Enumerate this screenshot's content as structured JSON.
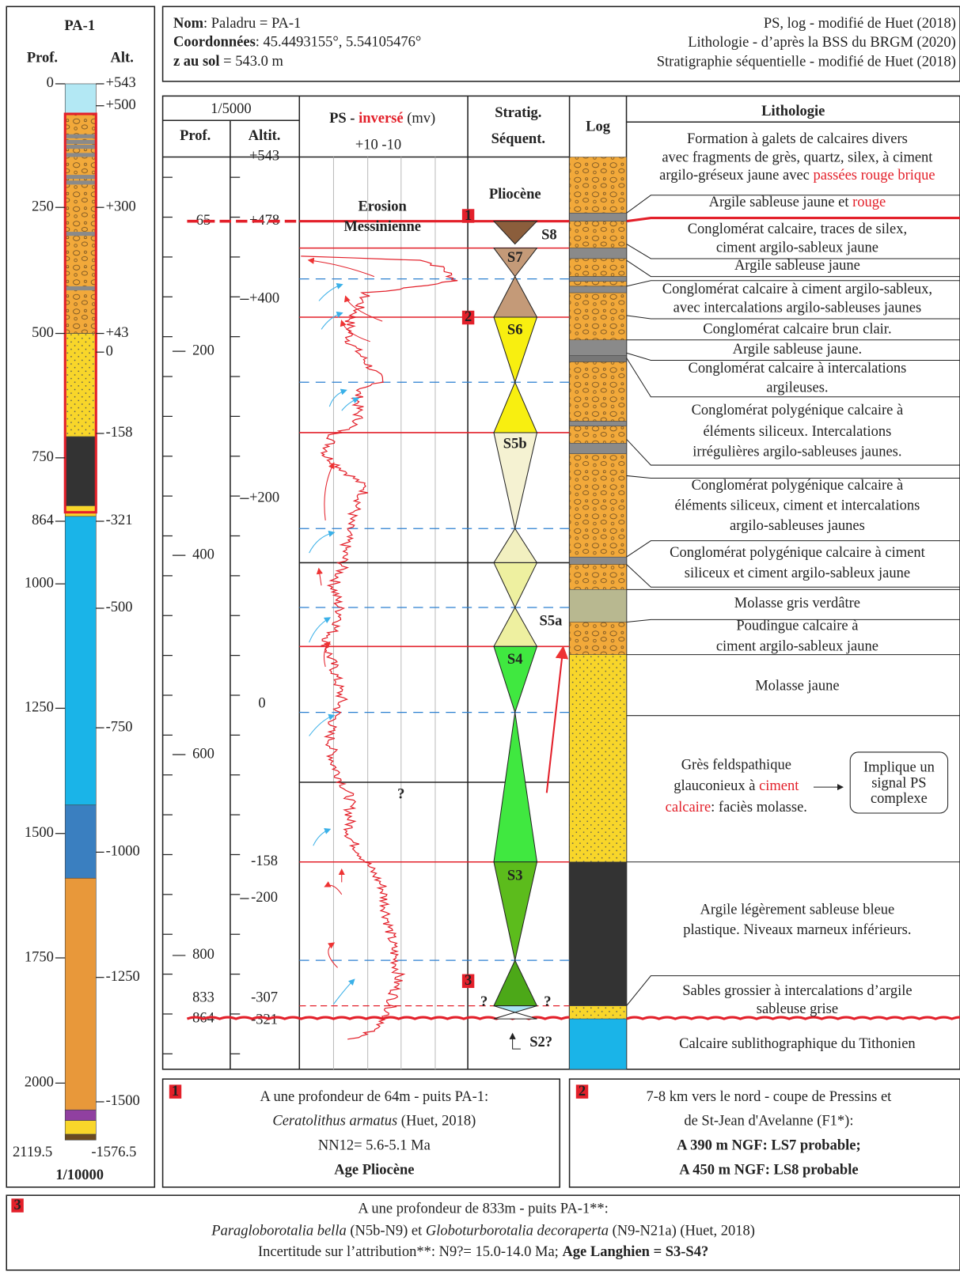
{
  "left_column": {
    "title": "PA-1",
    "depth_header": "Prof.",
    "alt_header": "Alt.",
    "depth_labels": [
      "0",
      "250",
      "500",
      "750",
      "864",
      "1000",
      "1250",
      "1500",
      "1750",
      "2000",
      "2119.5"
    ],
    "alt_labels": [
      "+543",
      "+500",
      "+300",
      "+43",
      "0",
      "-158",
      "-321",
      "-500",
      "-750",
      "-1000",
      "-1250",
      "-1500",
      "-1576.5"
    ],
    "scale": "1/10000"
  },
  "header": {
    "lines": [
      [
        {
          "text": "Nom",
          "style": "bold"
        },
        {
          "text": ": Paladru = PA-1"
        }
      ],
      [
        {
          "text": "Coordonnées",
          "style": "bold"
        },
        {
          "text": ": 45.4493155°, 5.54105476°"
        }
      ],
      [
        {
          "text": "z au sol",
          "style": "bold"
        },
        {
          "text": " = 543.0 m"
        }
      ]
    ],
    "credits": [
      "PS, log - modifié de Huet (2018)",
      "Lithologie - d’après la BSS du BRGM (2020)",
      "Stratigraphie séquentielle - modifié de Huet (2018)"
    ]
  },
  "columns": {
    "scale": "1/5000",
    "depth": "Prof.",
    "altitude": "Altit.",
    "ps": [
      {
        "text": "PS - ",
        "style": "bold"
      },
      {
        "text": "inversé",
        "style": "boldred"
      },
      {
        "text": " (mv)"
      }
    ],
    "ps_scale": "+10  -10",
    "strat": [
      "Stratig.",
      "Séquent."
    ],
    "log": "Log",
    "lithology": "Lithologie"
  },
  "depth_labels": [
    "65",
    "200",
    "400",
    "600",
    "800",
    "833",
    "864"
  ],
  "altitude_labels": [
    "+543",
    "+478",
    "+400",
    "+200",
    "0",
    "-158",
    "-200",
    "-307",
    "-321"
  ],
  "annotations": {
    "erosion": [
      "Erosion",
      "Messinienne"
    ],
    "pliocene": "Pliocène",
    "unknown": "?",
    "markers": [
      "1",
      "2",
      "3"
    ]
  },
  "sequences": [
    "S8",
    "S7",
    "S6",
    "S5b",
    "S5a",
    "S4",
    "S3",
    "S2?"
  ],
  "lithology": [
    [
      [
        {
          "text": "Formation à galets de calcaires divers"
        }
      ],
      [
        {
          "text": "avec fragments de grès, quartz, silex, à ciment"
        }
      ],
      [
        {
          "text": "argilo-gréseux jaune avec "
        },
        {
          "text": "passées rouge brique",
          "style": "red"
        }
      ]
    ],
    [
      [
        {
          "text": "Argile sableuse jaune et "
        },
        {
          "text": "rouge",
          "style": "red"
        }
      ]
    ],
    [
      [
        {
          "text": "Conglomérat calcaire, traces de silex,"
        }
      ],
      [
        {
          "text": "ciment argilo-sableux jaune"
        }
      ]
    ],
    [
      [
        {
          "text": "Argile sableuse jaune"
        }
      ]
    ],
    [
      [
        {
          "text": "Conglomérat calcaire à ciment argilo-sableux,"
        }
      ],
      [
        {
          "text": "avec intercalations argilo-sableuses jaunes"
        }
      ]
    ],
    [
      [
        {
          "text": "Conglomérat calcaire brun clair."
        }
      ]
    ],
    [
      [
        {
          "text": "Argile sableuse jaune."
        }
      ]
    ],
    [
      [
        {
          "text": "Conglomérat calcaire à intercalations"
        }
      ],
      [
        {
          "text": "argileuses."
        }
      ]
    ],
    [
      [
        {
          "text": "Conglomérat polygénique calcaire à"
        }
      ],
      [
        {
          "text": "éléments siliceux. Intercalations"
        }
      ],
      [
        {
          "text": "irrégulières argilo-sableuses jaunes."
        }
      ]
    ],
    [
      [
        {
          "text": "Conglomérat polygénique calcaire à"
        }
      ],
      [
        {
          "text": "éléments siliceux, ciment et intercalations"
        }
      ],
      [
        {
          "text": "argilo-sableuses jaunes"
        }
      ]
    ],
    [
      [
        {
          "text": "Conglomérat polygénique calcaire à ciment"
        }
      ],
      [
        {
          "text": "siliceux et ciment argilo-sableux jaune"
        }
      ]
    ],
    [
      [
        {
          "text": "Molasse gris verdâtre"
        }
      ]
    ],
    [
      [
        {
          "text": "Poudingue calcaire à"
        }
      ],
      [
        {
          "text": "ciment argilo-sableux jaune"
        }
      ]
    ],
    [
      [
        {
          "text": "Molasse jaune"
        }
      ]
    ],
    [
      [
        {
          "text": "Grès feldspathique"
        }
      ],
      [
        {
          "text": "glauconieux à "
        },
        {
          "text": "ciment",
          "style": "red"
        }
      ],
      [
        {
          "text": "calcaire",
          "style": "red"
        },
        {
          "text": ": faciès molasse."
        }
      ]
    ],
    [
      [
        {
          "text": "Argile légèrement sableuse bleue"
        }
      ],
      [
        {
          "text": "plastique. Niveaux marneux inférieurs."
        }
      ]
    ],
    [
      [
        {
          "text": "Sables grossier à intercalations d’argile"
        }
      ],
      [
        {
          "text": "sableuse grise"
        }
      ]
    ],
    [
      [
        {
          "text": "Calcaire sublithographique du Tithonien"
        }
      ]
    ]
  ],
  "side_note": [
    "Implique un",
    "signal PS",
    "complexe"
  ],
  "notes": [
    [
      [
        {
          "text": "A une profondeur de 64m - puits PA-1:"
        }
      ],
      [
        {
          "text": "Ceratolithus armatus",
          "style": "italic"
        },
        {
          "text": " (Huet, 2018)"
        }
      ],
      [
        {
          "text": "NN12= 5.6-5.1 Ma"
        }
      ],
      [
        {
          "text": "Age Pliocène",
          "style": "bold"
        }
      ]
    ],
    [
      [
        {
          "text": "7-8 km vers le nord - coupe de Pressins et"
        }
      ],
      [
        {
          "text": "de St-Jean d'Avelanne (F1*):"
        }
      ],
      [
        {
          "text": "A 390 m NGF: LS7 probable;",
          "style": "bold"
        }
      ],
      [
        {
          "text": "A 450 m NGF: LS8 probable",
          "style": "bold"
        }
      ]
    ],
    [
      [
        {
          "text": "A une profondeur de 833m - puits PA-1**:"
        }
      ],
      [
        {
          "text": "Paragloborotalia bella",
          "style": "italic"
        },
        {
          "text": " (N5b-N9) et "
        },
        {
          "text": "Globoturborotalia decoraperta",
          "style": "italic"
        },
        {
          "text": " (N9-N21a) (Huet, 2018)"
        }
      ],
      [
        {
          "text": "Incertitude sur l’attribution**: N9?= 15.0-14.0 Ma; "
        },
        {
          "text": "Age Langhien = S3-S4?",
          "style": "bold"
        }
      ]
    ]
  ]
}
